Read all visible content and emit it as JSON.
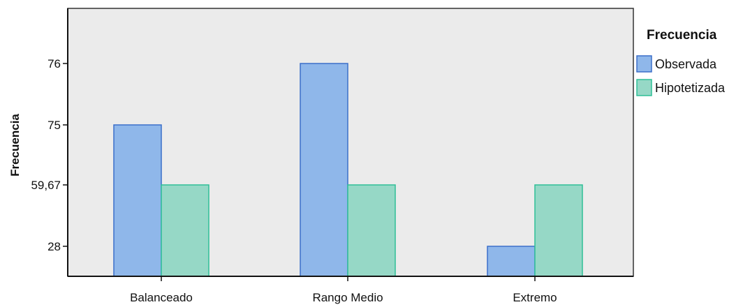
{
  "chart_data": {
    "type": "bar",
    "categories": [
      "Balanceado",
      "Rango Medio",
      "Extremo"
    ],
    "series": [
      {
        "name": "Observada",
        "values": [
          75,
          76,
          28
        ],
        "color": "#8fb7ea",
        "stroke": "#3b6fc9"
      },
      {
        "name": "Hipotetizada",
        "values": [
          59.67,
          59.67,
          59.67
        ],
        "color": "#96d8c6",
        "stroke": "#2fbf97"
      }
    ],
    "title": "",
    "xlabel": "",
    "ylabel": "Frecuencia",
    "y_ticks": [
      {
        "label": "76",
        "value": 76
      },
      {
        "label": "75",
        "value": 75
      },
      {
        "label": "59,67",
        "value": 59.67
      },
      {
        "label": "28",
        "value": 28
      }
    ],
    "legend": {
      "title": "Frecuencia",
      "placement": "right"
    },
    "plot_background": "#ebebeb",
    "grid": false
  }
}
